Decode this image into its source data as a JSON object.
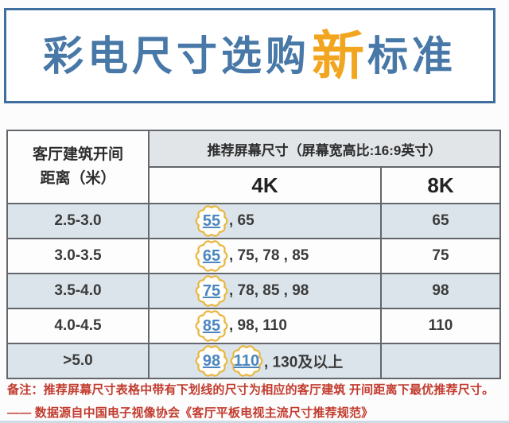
{
  "title": {
    "prefix": "彩电尺寸选购",
    "highlight": "新",
    "suffix": "标准"
  },
  "table": {
    "header": {
      "distance_line1": "客厅建筑开间",
      "distance_line2": "距离（米）",
      "recommend": "推荐屏幕尺寸（屏幕宽高比:16:9英寸）",
      "col_4k": "4K",
      "col_8k": "8K"
    },
    "rows": [
      {
        "distance": "2.5-3.0",
        "badges_4k": [
          "55"
        ],
        "rest_4k": ", 65",
        "value_8k": "65"
      },
      {
        "distance": "3.0-3.5",
        "badges_4k": [
          "65"
        ],
        "rest_4k": ", 75, 78 , 85",
        "value_8k": "75"
      },
      {
        "distance": "3.5-4.0",
        "badges_4k": [
          "75"
        ],
        "rest_4k": ", 78, 85 , 98",
        "value_8k": "98"
      },
      {
        "distance": "4.0-4.5",
        "badges_4k": [
          "85"
        ],
        "rest_4k": ", 98, 110",
        "value_8k": "110"
      },
      {
        "distance": ">5.0",
        "badges_4k": [
          "98",
          "110"
        ],
        "rest_4k": ", 130及以上",
        "value_8k": ""
      }
    ]
  },
  "notes": {
    "line1": "备注：推荐屏幕尺寸表格中带有下划线的尺寸为相应的客厅建筑 开间距离下最优推荐尺寸。",
    "line2": "—— 数据源自中国电子视像协会《客厅平板电视主流尺寸推荐规范》"
  },
  "colors": {
    "title_blue": "#4878a8",
    "highlight_orange": "#f2a51e",
    "border_blue": "#3f6f9f",
    "row_shade": "#dbe4ea",
    "header_gray": "#e1e5e8",
    "note_red": "#c23b2e",
    "badge_gold": "#e8b63f",
    "badge_number_blue": "#4a86c2",
    "grid_gray": "#63666a"
  },
  "chart_data": {
    "type": "table",
    "title": "彩电尺寸选购新标准",
    "header_group": "推荐屏幕尺寸（屏幕宽高比:16:9英寸）",
    "columns": [
      "客厅建筑开间距离（米）",
      "4K",
      "8K"
    ],
    "rows": [
      [
        "2.5-3.0",
        "55, 65",
        "65"
      ],
      [
        "3.0-3.5",
        "65, 75, 78, 85",
        "75"
      ],
      [
        "3.5-4.0",
        "75, 78, 85, 98",
        "98"
      ],
      [
        "4.0-4.5",
        "85, 98, 110",
        "110"
      ],
      [
        ">5.0",
        "98, 110, 130及以上",
        ""
      ]
    ],
    "underlined_optimal_4k_sizes": {
      "2.5-3.0": [
        55
      ],
      "3.0-3.5": [
        65
      ],
      "3.5-4.0": [
        75
      ],
      "4.0-4.5": [
        85
      ],
      ">5.0": [
        98,
        110
      ]
    },
    "footnotes": [
      "备注：推荐屏幕尺寸表格中带有下划线的尺寸为相应的客厅建筑 开间距离下最优推荐尺寸。",
      "—— 数据源自中国电子视像协会《客厅平板电视主流尺寸推荐规范》"
    ]
  }
}
